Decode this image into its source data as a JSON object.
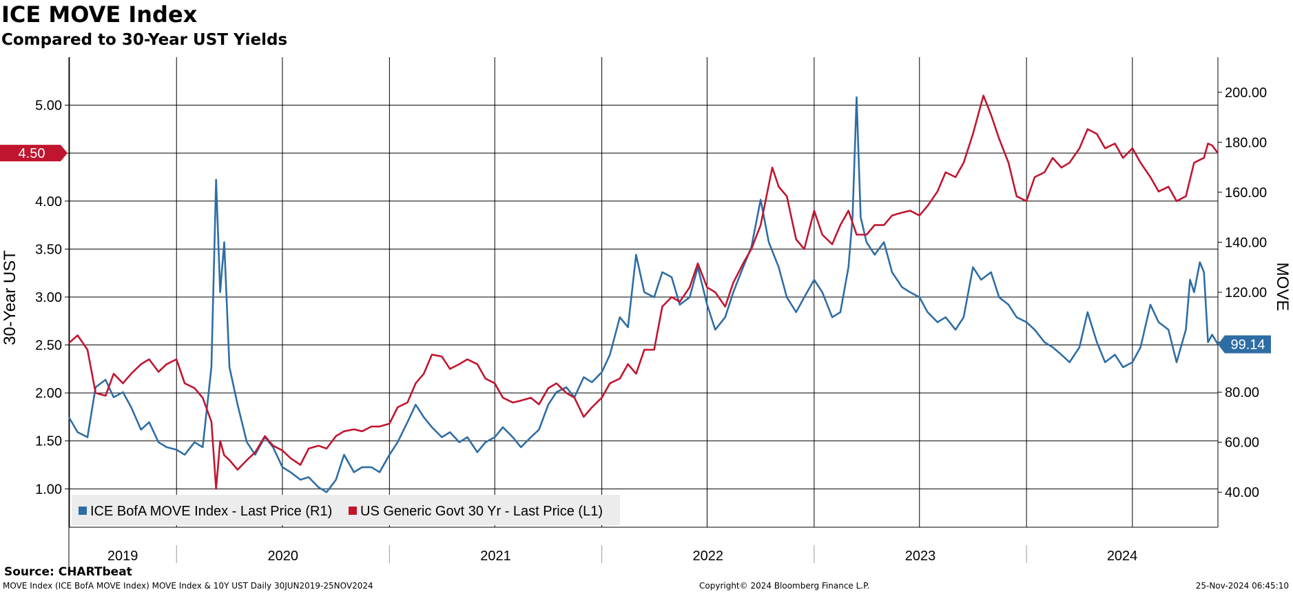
{
  "title": "ICE MOVE Index",
  "subtitle": "Compared to 30-Year UST Yields",
  "source": "Source: CHARTbeat",
  "footer": {
    "left": "MOVE Index (ICE BofA MOVE Index) MOVE Index & 10Y UST  Daily 30JUN2019-25NOV2024",
    "center": "Copyright© 2024 Bloomberg Finance L.P.",
    "right": "25-Nov-2024 06:45:10"
  },
  "chart_data": {
    "type": "line",
    "y_left": {
      "label": "30-Year UST",
      "min": 0.6,
      "max": 5.5,
      "ticks": [
        "1.00",
        "1.50",
        "2.00",
        "2.50",
        "3.00",
        "3.50",
        "4.00",
        "4.50",
        "5.00"
      ]
    },
    "y_right": {
      "label": "MOVE",
      "min": 26,
      "max": 214,
      "ticks": [
        "40.00",
        "60.00",
        "80.00",
        "100.00",
        "120.00",
        "140.00",
        "160.00",
        "180.00",
        "200.00"
      ]
    },
    "x_range": [
      "2019-06-30",
      "2024-11-25"
    ],
    "x_year_labels": [
      "2019",
      "2020",
      "2021",
      "2022",
      "2023",
      "2024"
    ],
    "grid": true,
    "legend_position": "bottom-left",
    "series": [
      {
        "name": "ICE BofA MOVE Index - Last Price (R1)",
        "axis": "right",
        "color": "#2e6da4",
        "last_value_label": "99.14",
        "points": [
          [
            "2019-06-30",
            70
          ],
          [
            "2019-07-15",
            64
          ],
          [
            "2019-08-01",
            62
          ],
          [
            "2019-08-15",
            82
          ],
          [
            "2019-09-01",
            85
          ],
          [
            "2019-09-15",
            78
          ],
          [
            "2019-10-01",
            80
          ],
          [
            "2019-10-15",
            74
          ],
          [
            "2019-11-01",
            65
          ],
          [
            "2019-11-15",
            68
          ],
          [
            "2019-12-01",
            60
          ],
          [
            "2019-12-15",
            58
          ],
          [
            "2020-01-01",
            57
          ],
          [
            "2020-01-15",
            55
          ],
          [
            "2020-02-01",
            60
          ],
          [
            "2020-02-15",
            58
          ],
          [
            "2020-03-01",
            90
          ],
          [
            "2020-03-09",
            165
          ],
          [
            "2020-03-16",
            120
          ],
          [
            "2020-03-23",
            140
          ],
          [
            "2020-04-01",
            90
          ],
          [
            "2020-04-15",
            75
          ],
          [
            "2020-05-01",
            60
          ],
          [
            "2020-05-15",
            55
          ],
          [
            "2020-06-01",
            62
          ],
          [
            "2020-06-15",
            58
          ],
          [
            "2020-07-01",
            50
          ],
          [
            "2020-07-15",
            48
          ],
          [
            "2020-08-01",
            45
          ],
          [
            "2020-08-15",
            46
          ],
          [
            "2020-09-01",
            42
          ],
          [
            "2020-09-15",
            40
          ],
          [
            "2020-10-01",
            45
          ],
          [
            "2020-10-15",
            55
          ],
          [
            "2020-11-01",
            48
          ],
          [
            "2020-11-15",
            50
          ],
          [
            "2020-12-01",
            50
          ],
          [
            "2020-12-15",
            48
          ],
          [
            "2021-01-01",
            55
          ],
          [
            "2021-01-15",
            60
          ],
          [
            "2021-02-01",
            68
          ],
          [
            "2021-02-15",
            75
          ],
          [
            "2021-03-01",
            70
          ],
          [
            "2021-03-15",
            66
          ],
          [
            "2021-04-01",
            62
          ],
          [
            "2021-04-15",
            64
          ],
          [
            "2021-05-01",
            60
          ],
          [
            "2021-05-15",
            62
          ],
          [
            "2021-06-01",
            56
          ],
          [
            "2021-06-15",
            60
          ],
          [
            "2021-07-01",
            62
          ],
          [
            "2021-07-15",
            66
          ],
          [
            "2021-08-01",
            62
          ],
          [
            "2021-08-15",
            58
          ],
          [
            "2021-09-01",
            62
          ],
          [
            "2021-09-15",
            65
          ],
          [
            "2021-10-01",
            75
          ],
          [
            "2021-10-15",
            80
          ],
          [
            "2021-11-01",
            82
          ],
          [
            "2021-11-15",
            78
          ],
          [
            "2021-12-01",
            86
          ],
          [
            "2021-12-15",
            84
          ],
          [
            "2022-01-01",
            88
          ],
          [
            "2022-01-15",
            95
          ],
          [
            "2022-02-01",
            110
          ],
          [
            "2022-02-15",
            106
          ],
          [
            "2022-03-01",
            135
          ],
          [
            "2022-03-15",
            120
          ],
          [
            "2022-04-01",
            118
          ],
          [
            "2022-04-15",
            128
          ],
          [
            "2022-05-01",
            126
          ],
          [
            "2022-05-15",
            115
          ],
          [
            "2022-06-01",
            118
          ],
          [
            "2022-06-15",
            130
          ],
          [
            "2022-07-01",
            115
          ],
          [
            "2022-07-15",
            105
          ],
          [
            "2022-08-01",
            110
          ],
          [
            "2022-08-15",
            120
          ],
          [
            "2022-09-01",
            130
          ],
          [
            "2022-09-15",
            138
          ],
          [
            "2022-10-01",
            157
          ],
          [
            "2022-10-15",
            140
          ],
          [
            "2022-11-01",
            130
          ],
          [
            "2022-11-15",
            118
          ],
          [
            "2022-12-01",
            112
          ],
          [
            "2022-12-15",
            118
          ],
          [
            "2023-01-01",
            125
          ],
          [
            "2023-01-15",
            120
          ],
          [
            "2023-02-01",
            110
          ],
          [
            "2023-02-15",
            112
          ],
          [
            "2023-03-01",
            130
          ],
          [
            "2023-03-08",
            150
          ],
          [
            "2023-03-15",
            198
          ],
          [
            "2023-03-22",
            150
          ],
          [
            "2023-04-01",
            140
          ],
          [
            "2023-04-15",
            135
          ],
          [
            "2023-05-01",
            140
          ],
          [
            "2023-05-15",
            128
          ],
          [
            "2023-06-01",
            122
          ],
          [
            "2023-06-15",
            120
          ],
          [
            "2023-07-01",
            118
          ],
          [
            "2023-07-15",
            112
          ],
          [
            "2023-08-01",
            108
          ],
          [
            "2023-08-15",
            110
          ],
          [
            "2023-09-01",
            105
          ],
          [
            "2023-09-15",
            110
          ],
          [
            "2023-10-01",
            130
          ],
          [
            "2023-10-15",
            125
          ],
          [
            "2023-11-01",
            128
          ],
          [
            "2023-11-15",
            118
          ],
          [
            "2023-12-01",
            115
          ],
          [
            "2023-12-15",
            110
          ],
          [
            "2024-01-01",
            108
          ],
          [
            "2024-01-15",
            105
          ],
          [
            "2024-02-01",
            100
          ],
          [
            "2024-02-15",
            98
          ],
          [
            "2024-03-01",
            95
          ],
          [
            "2024-03-15",
            92
          ],
          [
            "2024-04-01",
            98
          ],
          [
            "2024-04-15",
            112
          ],
          [
            "2024-05-01",
            100
          ],
          [
            "2024-05-15",
            92
          ],
          [
            "2024-06-01",
            95
          ],
          [
            "2024-06-15",
            90
          ],
          [
            "2024-07-01",
            92
          ],
          [
            "2024-07-15",
            98
          ],
          [
            "2024-08-01",
            115
          ],
          [
            "2024-08-15",
            108
          ],
          [
            "2024-09-01",
            105
          ],
          [
            "2024-09-15",
            92
          ],
          [
            "2024-10-01",
            105
          ],
          [
            "2024-10-08",
            125
          ],
          [
            "2024-10-15",
            120
          ],
          [
            "2024-10-25",
            132
          ],
          [
            "2024-11-01",
            128
          ],
          [
            "2024-11-08",
            100
          ],
          [
            "2024-11-15",
            103
          ],
          [
            "2024-11-25",
            99.14
          ]
        ]
      },
      {
        "name": "US Generic Govt 30 Yr - Last Price (L1)",
        "axis": "left",
        "color": "#c0152f",
        "last_value_label": "4.50",
        "points": [
          [
            "2019-06-30",
            2.52
          ],
          [
            "2019-07-15",
            2.6
          ],
          [
            "2019-08-01",
            2.45
          ],
          [
            "2019-08-15",
            2.0
          ],
          [
            "2019-09-01",
            1.97
          ],
          [
            "2019-09-15",
            2.2
          ],
          [
            "2019-10-01",
            2.1
          ],
          [
            "2019-10-15",
            2.2
          ],
          [
            "2019-11-01",
            2.3
          ],
          [
            "2019-11-15",
            2.35
          ],
          [
            "2019-12-01",
            2.22
          ],
          [
            "2019-12-15",
            2.3
          ],
          [
            "2020-01-01",
            2.35
          ],
          [
            "2020-01-15",
            2.1
          ],
          [
            "2020-02-01",
            2.05
          ],
          [
            "2020-02-15",
            1.95
          ],
          [
            "2020-03-01",
            1.7
          ],
          [
            "2020-03-09",
            1.0
          ],
          [
            "2020-03-16",
            1.5
          ],
          [
            "2020-03-23",
            1.35
          ],
          [
            "2020-04-01",
            1.3
          ],
          [
            "2020-04-15",
            1.2
          ],
          [
            "2020-05-01",
            1.3
          ],
          [
            "2020-05-15",
            1.38
          ],
          [
            "2020-06-01",
            1.55
          ],
          [
            "2020-06-15",
            1.45
          ],
          [
            "2020-07-01",
            1.4
          ],
          [
            "2020-07-15",
            1.32
          ],
          [
            "2020-08-01",
            1.25
          ],
          [
            "2020-08-15",
            1.42
          ],
          [
            "2020-09-01",
            1.45
          ],
          [
            "2020-09-15",
            1.42
          ],
          [
            "2020-10-01",
            1.55
          ],
          [
            "2020-10-15",
            1.6
          ],
          [
            "2020-11-01",
            1.62
          ],
          [
            "2020-11-15",
            1.6
          ],
          [
            "2020-12-01",
            1.65
          ],
          [
            "2020-12-15",
            1.65
          ],
          [
            "2021-01-01",
            1.68
          ],
          [
            "2021-01-15",
            1.85
          ],
          [
            "2021-02-01",
            1.9
          ],
          [
            "2021-02-15",
            2.1
          ],
          [
            "2021-03-01",
            2.2
          ],
          [
            "2021-03-15",
            2.4
          ],
          [
            "2021-04-01",
            2.38
          ],
          [
            "2021-04-15",
            2.25
          ],
          [
            "2021-05-01",
            2.3
          ],
          [
            "2021-05-15",
            2.35
          ],
          [
            "2021-06-01",
            2.3
          ],
          [
            "2021-06-15",
            2.15
          ],
          [
            "2021-07-01",
            2.1
          ],
          [
            "2021-07-15",
            1.95
          ],
          [
            "2021-08-01",
            1.9
          ],
          [
            "2021-08-15",
            1.92
          ],
          [
            "2021-09-01",
            1.95
          ],
          [
            "2021-09-15",
            1.88
          ],
          [
            "2021-10-01",
            2.05
          ],
          [
            "2021-10-15",
            2.1
          ],
          [
            "2021-11-01",
            2.0
          ],
          [
            "2021-11-15",
            1.95
          ],
          [
            "2021-12-01",
            1.75
          ],
          [
            "2021-12-15",
            1.85
          ],
          [
            "2022-01-01",
            1.95
          ],
          [
            "2022-01-15",
            2.1
          ],
          [
            "2022-02-01",
            2.15
          ],
          [
            "2022-02-15",
            2.3
          ],
          [
            "2022-03-01",
            2.2
          ],
          [
            "2022-03-15",
            2.45
          ],
          [
            "2022-04-01",
            2.45
          ],
          [
            "2022-04-15",
            2.9
          ],
          [
            "2022-05-01",
            3.0
          ],
          [
            "2022-05-15",
            2.95
          ],
          [
            "2022-06-01",
            3.1
          ],
          [
            "2022-06-15",
            3.35
          ],
          [
            "2022-07-01",
            3.1
          ],
          [
            "2022-07-15",
            3.05
          ],
          [
            "2022-08-01",
            2.9
          ],
          [
            "2022-08-15",
            3.15
          ],
          [
            "2022-09-01",
            3.35
          ],
          [
            "2022-09-15",
            3.5
          ],
          [
            "2022-10-01",
            3.75
          ],
          [
            "2022-10-21",
            4.35
          ],
          [
            "2022-11-01",
            4.15
          ],
          [
            "2022-11-15",
            4.05
          ],
          [
            "2022-12-01",
            3.6
          ],
          [
            "2022-12-15",
            3.5
          ],
          [
            "2023-01-01",
            3.9
          ],
          [
            "2023-01-15",
            3.65
          ],
          [
            "2023-02-01",
            3.55
          ],
          [
            "2023-02-15",
            3.75
          ],
          [
            "2023-03-01",
            3.9
          ],
          [
            "2023-03-15",
            3.65
          ],
          [
            "2023-04-01",
            3.65
          ],
          [
            "2023-04-15",
            3.75
          ],
          [
            "2023-05-01",
            3.75
          ],
          [
            "2023-05-15",
            3.85
          ],
          [
            "2023-06-01",
            3.88
          ],
          [
            "2023-06-15",
            3.9
          ],
          [
            "2023-07-01",
            3.85
          ],
          [
            "2023-07-15",
            3.95
          ],
          [
            "2023-08-01",
            4.1
          ],
          [
            "2023-08-15",
            4.3
          ],
          [
            "2023-09-01",
            4.25
          ],
          [
            "2023-09-15",
            4.4
          ],
          [
            "2023-10-01",
            4.7
          ],
          [
            "2023-10-19",
            5.1
          ],
          [
            "2023-11-01",
            4.9
          ],
          [
            "2023-11-15",
            4.65
          ],
          [
            "2023-12-01",
            4.4
          ],
          [
            "2023-12-15",
            4.05
          ],
          [
            "2024-01-01",
            4.0
          ],
          [
            "2024-01-15",
            4.25
          ],
          [
            "2024-02-01",
            4.3
          ],
          [
            "2024-02-15",
            4.45
          ],
          [
            "2024-03-01",
            4.35
          ],
          [
            "2024-03-15",
            4.4
          ],
          [
            "2024-04-01",
            4.55
          ],
          [
            "2024-04-15",
            4.75
          ],
          [
            "2024-05-01",
            4.7
          ],
          [
            "2024-05-15",
            4.55
          ],
          [
            "2024-06-01",
            4.6
          ],
          [
            "2024-06-15",
            4.45
          ],
          [
            "2024-07-01",
            4.55
          ],
          [
            "2024-07-15",
            4.4
          ],
          [
            "2024-08-01",
            4.25
          ],
          [
            "2024-08-15",
            4.1
          ],
          [
            "2024-09-01",
            4.15
          ],
          [
            "2024-09-15",
            4.0
          ],
          [
            "2024-10-01",
            4.05
          ],
          [
            "2024-10-15",
            4.4
          ],
          [
            "2024-11-01",
            4.45
          ],
          [
            "2024-11-08",
            4.6
          ],
          [
            "2024-11-15",
            4.58
          ],
          [
            "2024-11-25",
            4.5
          ]
        ]
      }
    ]
  }
}
